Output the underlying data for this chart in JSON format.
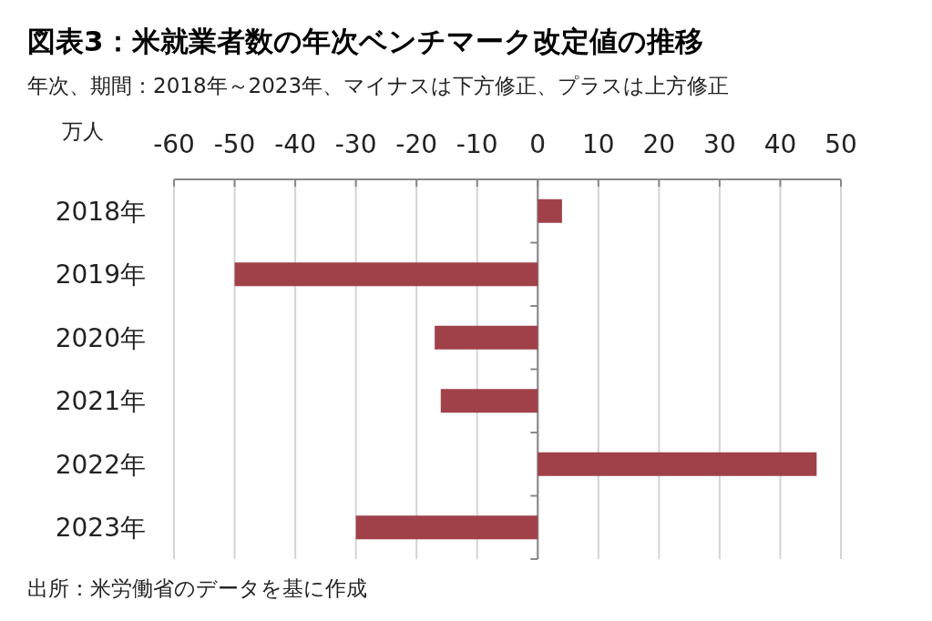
{
  "chart_data": {
    "type": "bar",
    "orientation": "horizontal",
    "title": "図表3：米就業者数の年次ベンチマーク改定値の推移",
    "subtitle": "年次、期間：2018年～2023年、マイナスは下方修正、プラスは上方修正",
    "xlabel": "万人",
    "categories": [
      "2018年",
      "2019年",
      "2020年",
      "2021年",
      "2022年",
      "2023年"
    ],
    "values": [
      4,
      -50,
      -17,
      -16,
      46,
      -30
    ],
    "color": "#a0414a",
    "xlim": [
      -60,
      50
    ],
    "xticks": [
      -60,
      -50,
      -40,
      -30,
      -20,
      -10,
      0,
      10,
      20,
      30,
      40,
      50
    ],
    "grid": "x",
    "annotations": [
      "出所：米労働省のデータを基に作成"
    ]
  }
}
